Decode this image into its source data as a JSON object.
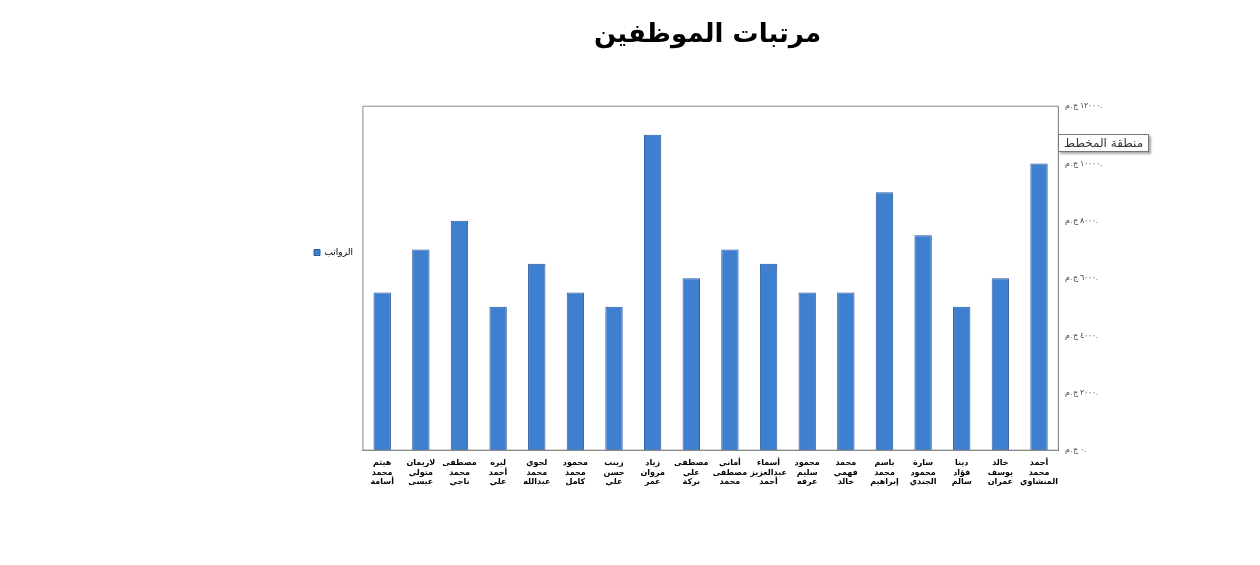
{
  "chart_data": {
    "type": "bar",
    "title": "مرتبات الموظفين",
    "categories": [
      "هيثم محمد أسامة",
      "لاريمان متولي عيسى",
      "مصطفى محمد ناجي",
      "ليره أحمد علي",
      "لجوي محمد عبدالله",
      "محمود محمد كامل",
      "زينب حسن علي",
      "زياد مروان عمر",
      "مصطفى علي بركة",
      "أماني مصطفى محمد",
      "أسماء عبدالعزيز أحمد",
      "محمود سليم عرفه",
      "محمد فهمي خالد",
      "باسم محمد إبراهيم",
      "سارة محمود الجندي",
      "دينا فؤاد سالم",
      "خالد يوسف عمران",
      "أحمد محمد المنشاوي"
    ],
    "series": [
      {
        "name": "الرواتب",
        "color": "#3f7fcf",
        "values": [
          5500,
          7000,
          8000,
          5000,
          6500,
          5500,
          5000,
          11000,
          6000,
          7000,
          6500,
          5500,
          5500,
          9000,
          7500,
          5000,
          6000,
          10000
        ]
      }
    ],
    "ylim": [
      0,
      12000
    ],
    "yticks": [
      {
        "value": 0,
        "label": "٠ ج.م."
      },
      {
        "value": 2000,
        "label": "٢٠٠٠ ج.م."
      },
      {
        "value": 4000,
        "label": "٤٠٠٠ ج.م."
      },
      {
        "value": 6000,
        "label": "٦٠٠٠ ج.م."
      },
      {
        "value": 8000,
        "label": "٨٠٠٠ ج.م."
      },
      {
        "value": 10000,
        "label": "١٠٠٠٠ ج.م."
      },
      {
        "value": 12000,
        "label": "١٢٠٠٠ ج.م."
      }
    ],
    "grid": false,
    "legend": "left",
    "annotations": [
      "منطقة المخطط"
    ]
  }
}
